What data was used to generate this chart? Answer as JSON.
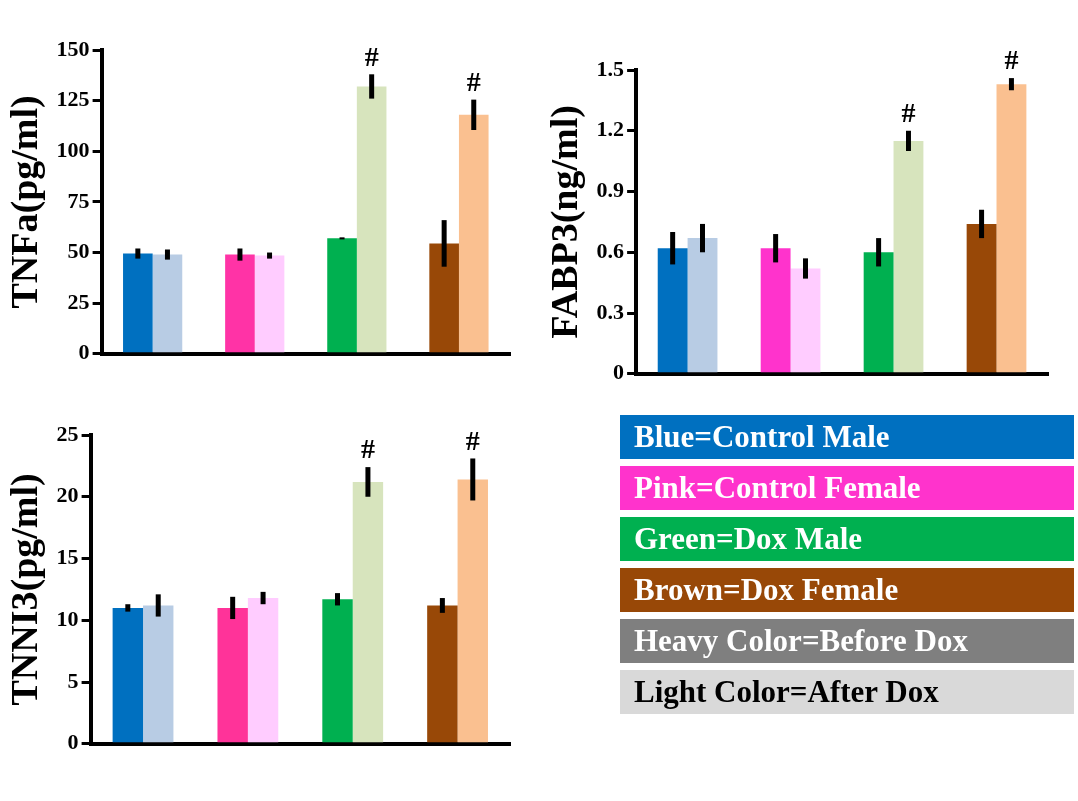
{
  "chart_data": [
    {
      "type": "bar",
      "ylabel": "TNFa(pg/ml)",
      "categories": [
        null,
        null,
        null,
        null
      ],
      "ylim": [
        0,
        150
      ],
      "yticks": [
        0,
        25,
        50,
        75,
        100,
        125,
        150
      ],
      "grid": false,
      "legend": false,
      "tick_labels": "y",
      "series": [
        {
          "colors": [
            "#0070c0",
            "#ff33a6",
            "#00b050",
            "#984807"
          ],
          "values": [
            49.5,
            49,
            57,
            54.5
          ],
          "errors": [
            2.5,
            3,
            0.5,
            11.5
          ]
        },
        {
          "colors": [
            "#b8cce4",
            "#ffccff",
            "#d7e4bd",
            "#fac090"
          ],
          "values": [
            49,
            48.5,
            132,
            118
          ],
          "errors": [
            2.5,
            1.5,
            6,
            7.5
          ],
          "value_labels": [
            null,
            null,
            "#",
            "#"
          ]
        }
      ]
    },
    {
      "type": "bar",
      "ylabel": "FABP3(ng/ml)",
      "categories": [
        null,
        null,
        null,
        null
      ],
      "ylim": [
        0,
        1.5
      ],
      "yticks": [
        0,
        0.3,
        0.6,
        0.9,
        1.2,
        1.5
      ],
      "grid": false,
      "legend": false,
      "tick_labels": "y",
      "series": [
        {
          "colors": [
            "#0070c0",
            "#ff33cc",
            "#00b050",
            "#984807"
          ],
          "values": [
            0.62,
            0.62,
            0.6,
            0.74
          ],
          "errors": [
            0.08,
            0.07,
            0.07,
            0.07
          ]
        },
        {
          "colors": [
            "#b8cce4",
            "#ffccff",
            "#d7e4bd",
            "#fac090"
          ],
          "values": [
            0.67,
            0.52,
            1.15,
            1.43
          ],
          "errors": [
            0.07,
            0.05,
            0.05,
            0.03
          ],
          "value_labels": [
            null,
            null,
            "#",
            "#"
          ]
        }
      ]
    },
    {
      "type": "bar",
      "ylabel": "TNNI3(pg/ml)",
      "categories": [
        null,
        null,
        null,
        null
      ],
      "ylim": [
        0,
        25
      ],
      "yticks": [
        0,
        5,
        10,
        15,
        20,
        25
      ],
      "grid": false,
      "legend": false,
      "tick_labels": "y",
      "series": [
        {
          "colors": [
            "#0070c0",
            "#ff3399",
            "#00b050",
            "#984807"
          ],
          "values": [
            11,
            11,
            11.7,
            11.2
          ],
          "errors": [
            0.3,
            0.9,
            0.5,
            0.6
          ]
        },
        {
          "colors": [
            "#b8cce4",
            "#ffccff",
            "#d7e4bd",
            "#fac090"
          ],
          "values": [
            11.2,
            11.8,
            21.2,
            21.4
          ],
          "errors": [
            0.9,
            0.5,
            1.2,
            1.7
          ],
          "value_labels": [
            null,
            null,
            "#",
            "#"
          ]
        }
      ]
    },
    {
      "type": "other",
      "annotations": [
        "Blue=Control Male",
        "Pink=Control Female",
        "Green=Dox Male",
        "Brown=Dox Female",
        "Heavy Color=Before Dox",
        "Light Color=After Dox"
      ],
      "colors": [
        "#0070c0",
        "#ff33cc",
        "#00b050",
        "#984807",
        "#7f7f7f",
        "#d9d9d9"
      ]
    }
  ]
}
